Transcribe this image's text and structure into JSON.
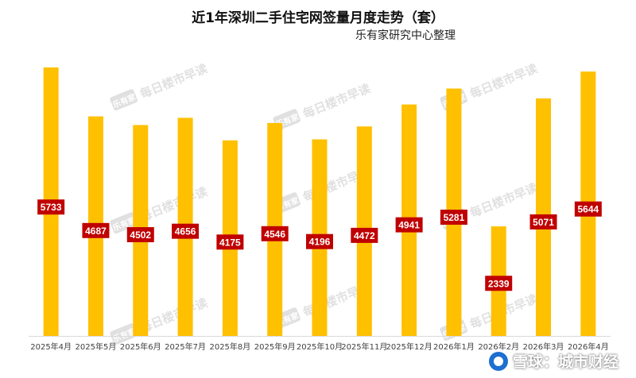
{
  "chart_data": {
    "type": "bar",
    "title": "近1年深圳二手住宅网签量月度走势（套）",
    "subtitle": "乐有家研究中心整理",
    "categories": [
      "2025年4月",
      "2025年5月",
      "2025年6月",
      "2025年7月",
      "2025年8月",
      "2025年9月",
      "2025年10月",
      "2025年11月",
      "2025年12月",
      "2026年1月",
      "2026年2月",
      "2026年3月",
      "2026年4月"
    ],
    "values": [
      5733,
      4687,
      4502,
      4656,
      4175,
      4546,
      4196,
      4472,
      4941,
      5281,
      2339,
      5071,
      5644
    ],
    "data_labels": [
      "5733",
      "4687",
      "4502",
      "4656",
      "4175",
      "4546",
      "4196",
      "4472",
      "4941",
      "5281",
      "2339",
      "5071",
      "5644"
    ],
    "ylim": [
      0,
      5900
    ],
    "grid": false,
    "legend": "none",
    "colors": {
      "bar": "#FFC000",
      "label_bg": "#C00000",
      "label_text": "#FFFFFF",
      "axis": "#D9D9D9"
    }
  },
  "watermark": {
    "logo_text": "乐有家",
    "text": "每日楼市早读"
  },
  "footer": {
    "brand": "雪球：城市财经"
  }
}
